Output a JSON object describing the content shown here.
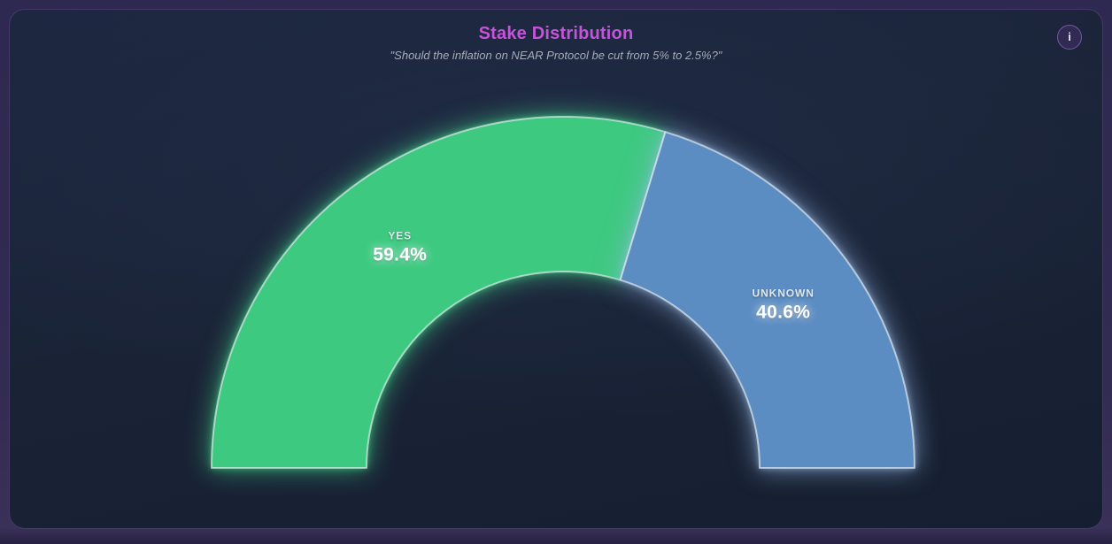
{
  "header": {
    "title": "Stake Distribution",
    "subtitle": "\"Should the inflation on NEAR Protocol be cut from 5% to 2.5%?\"",
    "info_button": {
      "icon": "info-icon",
      "glyph": "i"
    }
  },
  "theme": {
    "page_bg": "#2e2950",
    "card_bg": "#1a2336",
    "card_border": "#46396a",
    "title_color": "#c554da",
    "subtitle_color": "#a6acb8",
    "segment_stroke": "rgba(232,240,245,0.65)"
  },
  "chart_data": {
    "type": "pie",
    "variant": "half-donut-gauge",
    "title": "Stake Distribution",
    "subtitle": "\"Should the inflation on NEAR Protocol be cut from 5% to 2.5%?\"",
    "labels": [
      "YES",
      "UNKNOWN"
    ],
    "values": [
      59.4,
      40.6
    ],
    "value_labels": [
      "59.4%",
      "40.6%"
    ],
    "colors": [
      "#3ec981",
      "#5b8cc2"
    ],
    "glow_colors": [
      "rgba(62,201,129,0.7)",
      "rgba(150,185,228,0.65)"
    ],
    "start_angle_deg": 180,
    "end_angle_deg": 0,
    "legend": "none",
    "label_position": "inside-mid-arc"
  }
}
